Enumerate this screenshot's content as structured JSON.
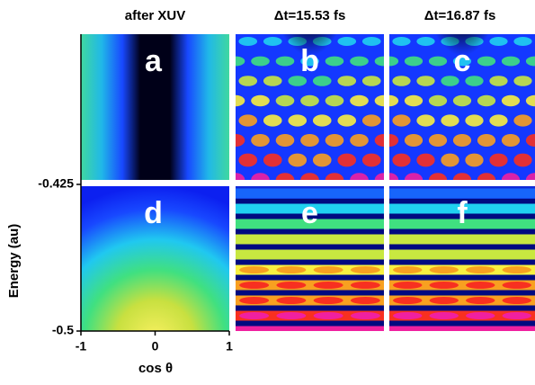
{
  "chart_data": {
    "type": "heatmap",
    "column_titles": [
      "after XUV",
      "Δt=15.53 fs",
      "Δt=16.87 fs"
    ],
    "panel_labels": [
      "a",
      "b",
      "c",
      "d",
      "e",
      "f"
    ],
    "xlabel": "cos θ",
    "ylabel": "Energy (au)",
    "xlim": [
      -1,
      1
    ],
    "xticks": [
      -1,
      0,
      1
    ],
    "ylim": [
      -0.5,
      -0.425
    ],
    "yticks": [
      -0.5,
      -0.425
    ]
  }
}
